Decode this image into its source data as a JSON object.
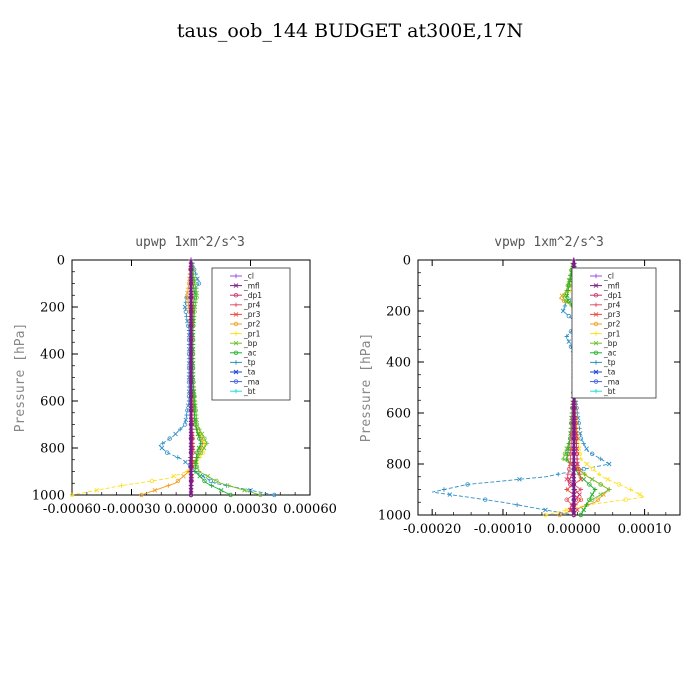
{
  "title": "taus_oob_144  BUDGET at300E,17N",
  "legend_entries": [
    {
      "name": "_cl",
      "color": "#9a4fd8"
    },
    {
      "name": "_mfl",
      "color": "#7a1f86"
    },
    {
      "name": "_dp1",
      "color": "#c8306c"
    },
    {
      "name": "_pr4",
      "color": "#e0556e"
    },
    {
      "name": "_pr3",
      "color": "#f04838"
    },
    {
      "name": "_pr2",
      "color": "#f0a020"
    },
    {
      "name": "_pr1",
      "color": "#ffe020"
    },
    {
      "name": "_bp",
      "color": "#70c030"
    },
    {
      "name": "_ac",
      "color": "#20b030"
    },
    {
      "name": "_tp",
      "color": "#3090c8"
    },
    {
      "name": "_ta",
      "color": "#2040d8"
    },
    {
      "name": "_ma",
      "color": "#4060e0"
    },
    {
      "name": "_bt",
      "color": "#20e0e0"
    }
  ],
  "chart_data": [
    {
      "type": "line",
      "title": "upwp   1xm^2/s^3",
      "xlabel": "",
      "ylabel": "Pressure [hPa]",
      "xlim": [
        -0.0006,
        0.0006
      ],
      "ylim": [
        1000,
        0
      ],
      "xticks": [
        -0.0006,
        -0.0003,
        0,
        0.0003,
        0.0006
      ],
      "xtick_labels": [
        "-0.00060",
        "-0.00030",
        "0.00000",
        "0.00030",
        "0.00060"
      ],
      "yticks": [
        0,
        200,
        400,
        600,
        800,
        1000
      ],
      "ytick_labels": [
        "0",
        "200",
        "400",
        "600",
        "800",
        "1000"
      ],
      "legend_position": "top-right",
      "series": [
        {
          "name": "_tp",
          "p": [
            0,
            50,
            100,
            130,
            150,
            200,
            250,
            300,
            400,
            500,
            600,
            700,
            750,
            790,
            820,
            850,
            900,
            950,
            1000
          ],
          "values": [
            0,
            2e-05,
            4e-05,
            2e-05,
            -2e-05,
            -3e-05,
            -2e-05,
            -1e-05,
            -1e-05,
            -1e-05,
            -1e-05,
            -3e-05,
            -9e-05,
            -0.00016,
            -0.00012,
            -4e-05,
            2e-05,
            0.00012,
            0.00042
          ]
        },
        {
          "name": "_pr1",
          "p": [
            0,
            100,
            150,
            200,
            300,
            500,
            700,
            780,
            820,
            860,
            900,
            930,
            960,
            1000
          ],
          "values": [
            0,
            1e-05,
            0,
            1e-05,
            1e-05,
            1e-05,
            2e-05,
            7e-05,
            6e-05,
            3e-05,
            -2e-05,
            -0.00012,
            -0.00035,
            -0.0006
          ]
        },
        {
          "name": "_pr2",
          "p": [
            0,
            100,
            150,
            200,
            300,
            500,
            700,
            780,
            820,
            900,
            950,
            1000
          ],
          "values": [
            0,
            -1e-05,
            -2e-05,
            -1e-05,
            0,
            0,
            2e-05,
            6e-05,
            4e-05,
            -1e-05,
            -8e-05,
            -0.00025
          ]
        },
        {
          "name": "_bp",
          "p": [
            0,
            100,
            150,
            200,
            300,
            500,
            700,
            780,
            820,
            860,
            900,
            950,
            1000
          ],
          "values": [
            0,
            2e-05,
            3e-05,
            2e-05,
            1e-05,
            1e-05,
            3e-05,
            8e-05,
            5e-05,
            2e-05,
            4e-05,
            0.00015,
            0.00035
          ]
        },
        {
          "name": "_ac",
          "p": [
            0,
            100,
            150,
            200,
            300,
            500,
            700,
            780,
            820,
            900,
            950,
            1000
          ],
          "values": [
            0,
            1e-05,
            2e-05,
            1e-05,
            1e-05,
            1e-05,
            2e-05,
            5e-05,
            3e-05,
            2e-05,
            8e-05,
            0.0002
          ]
        },
        {
          "name": "_pr3",
          "p": [
            0,
            200,
            500,
            700,
            800,
            900,
            1000
          ],
          "values": [
            0,
            5e-06,
            0,
            5e-06,
            1e-05,
            5e-06,
            0
          ]
        },
        {
          "name": "_dp1",
          "p": [
            0,
            200,
            500,
            800,
            850,
            900,
            1000
          ],
          "values": [
            0,
            0,
            0,
            5e-06,
            -5e-06,
            5e-06,
            0
          ]
        },
        {
          "name": "_cl",
          "p": [
            0,
            200,
            500,
            800,
            1000
          ],
          "values": [
            0,
            0,
            0,
            0,
            0
          ]
        },
        {
          "name": "_mfl",
          "p": [
            0,
            200,
            500,
            800,
            1000
          ],
          "values": [
            0,
            0,
            0,
            0,
            0
          ]
        }
      ]
    },
    {
      "type": "line",
      "title": "vpwp   1xm^2/s^3",
      "xlabel": "",
      "ylabel": "Pressure [hPa]",
      "xlim": [
        -0.00022,
        0.00015
      ],
      "ylim": [
        1000,
        0
      ],
      "xticks": [
        -0.0002,
        -0.0001,
        0,
        0.0001
      ],
      "xtick_labels": [
        "-0.00020",
        "-0.00010",
        "0.00000",
        "0.00010"
      ],
      "yticks": [
        0,
        200,
        400,
        600,
        800,
        1000
      ],
      "ytick_labels": [
        "0",
        "200",
        "400",
        "600",
        "800",
        "1000"
      ],
      "legend_position": "top-right",
      "series": [
        {
          "name": "_tp",
          "p": [
            0,
            80,
            100,
            130,
            160,
            200,
            250,
            300,
            400,
            500,
            600,
            700,
            750,
            800,
            850,
            880,
            910,
            950,
            1000
          ],
          "values": [
            0,
            5e-06,
            2e-05,
            1e-05,
            -1e-05,
            -1.5e-05,
            5e-06,
            -1e-05,
            5e-06,
            0,
            5e-06,
            1e-05,
            2e-05,
            5e-05,
            -4e-05,
            -0.00015,
            -0.0002,
            -0.0001,
            0
          ]
        },
        {
          "name": "_pr1",
          "p": [
            0,
            120,
            150,
            200,
            300,
            500,
            700,
            780,
            850,
            900,
            930,
            960,
            1000
          ],
          "values": [
            0,
            -5e-06,
            -1.5e-05,
            1e-05,
            5e-06,
            0,
            5e-06,
            1e-05,
            4e-05,
            8e-05,
            0.0001,
            2e-05,
            -4e-05
          ]
        },
        {
          "name": "_pr2",
          "p": [
            0,
            120,
            150,
            200,
            300,
            500,
            700,
            780,
            850,
            900,
            950,
            1000
          ],
          "values": [
            0,
            -1e-05,
            -2e-05,
            1e-05,
            5e-06,
            0,
            5e-06,
            -1e-05,
            2e-05,
            5e-05,
            3e-05,
            -2e-05
          ]
        },
        {
          "name": "_bp",
          "p": [
            0,
            120,
            150,
            200,
            300,
            500,
            700,
            780,
            850,
            900,
            950,
            1000
          ],
          "values": [
            0,
            -1e-05,
            -1.5e-05,
            5e-06,
            5e-06,
            0,
            -5e-06,
            -1.5e-05,
            2e-05,
            5e-05,
            2e-05,
            1e-05
          ]
        },
        {
          "name": "_ac",
          "p": [
            0,
            150,
            200,
            500,
            700,
            780,
            850,
            900,
            1000
          ],
          "values": [
            0,
            -1e-05,
            5e-06,
            0,
            -5e-06,
            -1e-05,
            1e-05,
            3e-05,
            1e-05
          ]
        },
        {
          "name": "_pr3",
          "p": [
            0,
            200,
            500,
            800,
            860,
            900,
            940,
            980,
            1000
          ],
          "values": [
            0,
            0,
            0,
            5e-06,
            1e-05,
            -1e-05,
            1e-05,
            -5e-06,
            0
          ]
        },
        {
          "name": "_pr4",
          "p": [
            0,
            200,
            500,
            800,
            860,
            900,
            940,
            980,
            1000
          ],
          "values": [
            0,
            0,
            0,
            -5e-06,
            -1e-05,
            1e-05,
            -1e-05,
            5e-06,
            0
          ]
        },
        {
          "name": "_dp1",
          "p": [
            0,
            200,
            500,
            800,
            870,
            920,
            970,
            1000
          ],
          "values": [
            0,
            0,
            0,
            5e-06,
            -8e-06,
            8e-06,
            -5e-06,
            0
          ]
        },
        {
          "name": "_cl",
          "p": [
            0,
            200,
            500,
            800,
            1000
          ],
          "values": [
            0,
            0,
            0,
            0,
            0
          ]
        },
        {
          "name": "_mfl",
          "p": [
            0,
            200,
            500,
            800,
            1000
          ],
          "values": [
            0,
            0,
            0,
            0,
            0
          ]
        }
      ]
    }
  ]
}
